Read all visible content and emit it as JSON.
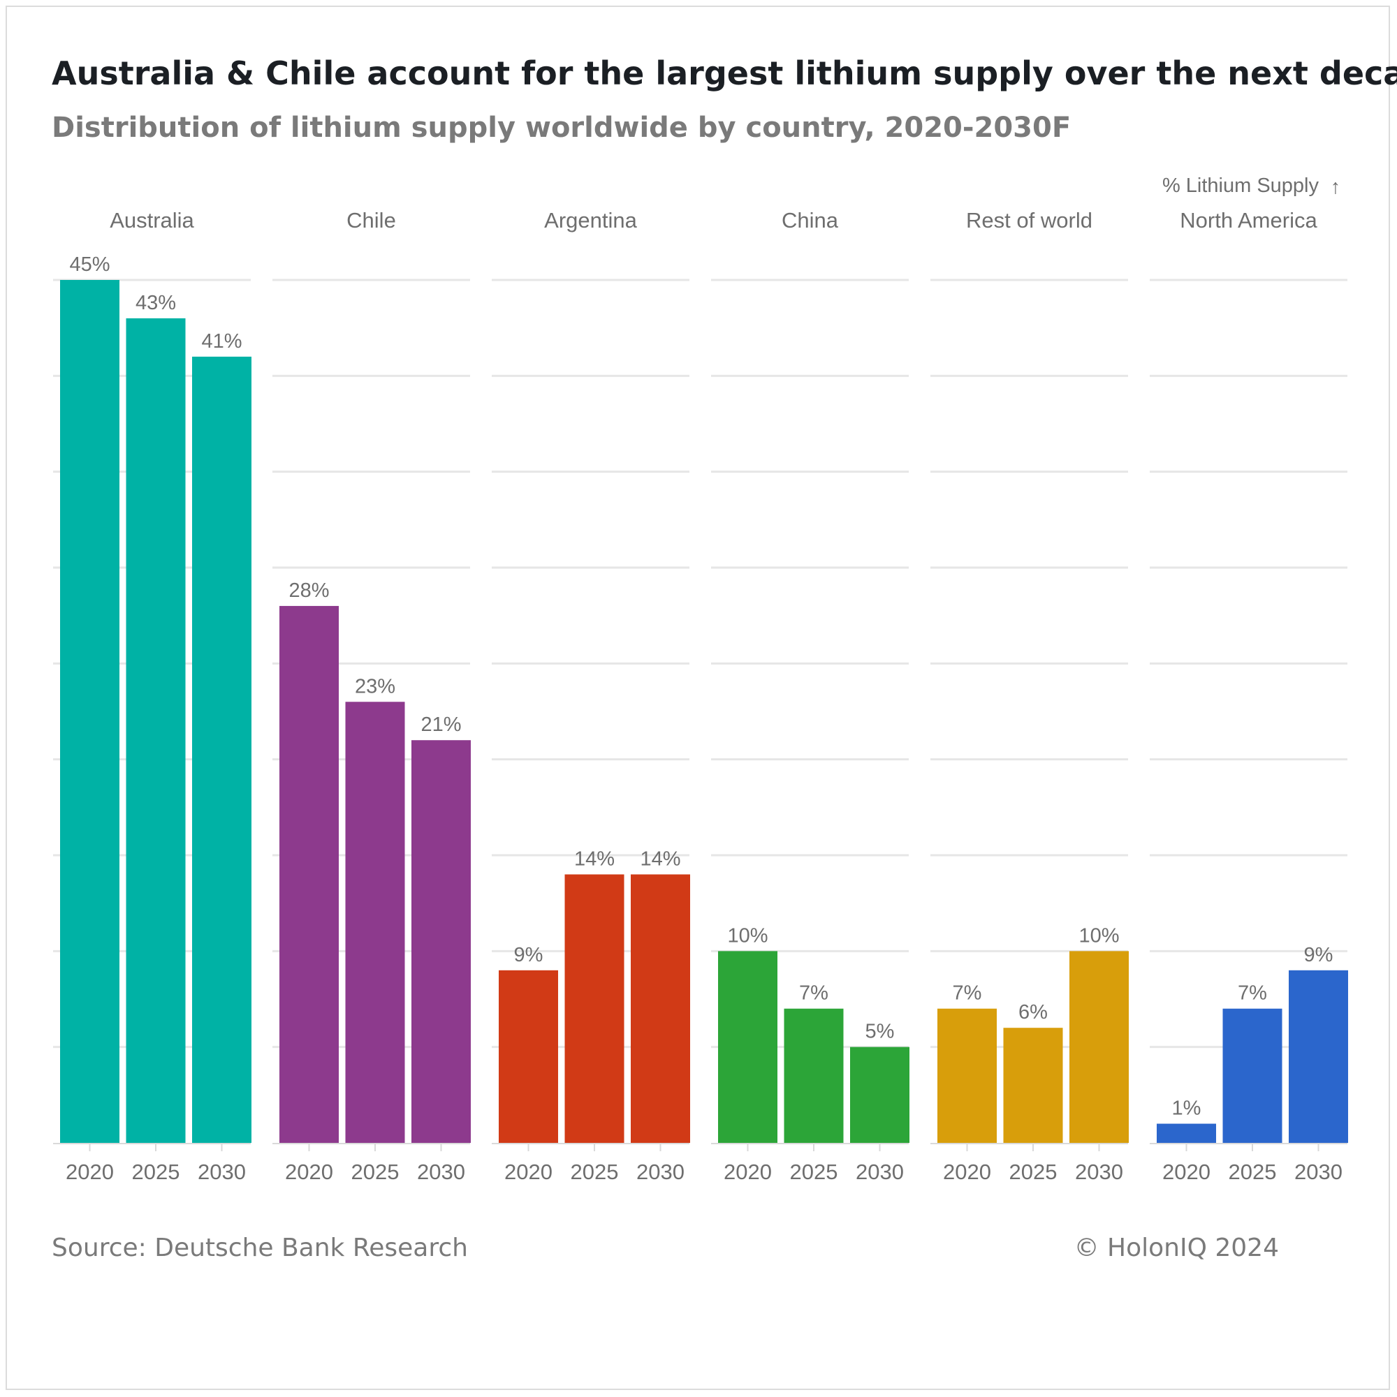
{
  "title": "Australia & Chile account for the largest lithium supply over the next decade",
  "subtitle": "Distribution of lithium supply worldwide by country, 2020-2030F",
  "source": "Source: Deutsche Bank Research",
  "copyright": "© HolonIQ 2024",
  "chart_data": {
    "type": "bar",
    "layout": "small-multiples",
    "title": "Australia & Chile account for the largest lithium supply over the next decade",
    "subtitle": "Distribution of lithium supply worldwide by country, 2020-2030F",
    "ylabel": "% Lithium Supply",
    "ylabel_arrow": "↑",
    "xlabel": "",
    "ylim": [
      0,
      45
    ],
    "grid": true,
    "categories": [
      "2020",
      "2025",
      "2030"
    ],
    "series": [
      {
        "name": "Australia",
        "color": "#00b2a5",
        "values": [
          45,
          43,
          41
        ],
        "labels": [
          "45%",
          "43%",
          "41%"
        ]
      },
      {
        "name": "Chile",
        "color": "#8d3a8d",
        "values": [
          28,
          23,
          21
        ],
        "labels": [
          "28%",
          "23%",
          "21%"
        ]
      },
      {
        "name": "Argentina",
        "color": "#d13a16",
        "values": [
          9,
          14,
          14
        ],
        "labels": [
          "9%",
          "14%",
          "14%"
        ]
      },
      {
        "name": "China",
        "color": "#2ca538",
        "values": [
          10,
          7,
          5
        ],
        "labels": [
          "10%",
          "7%",
          "5%"
        ]
      },
      {
        "name": "Rest of world",
        "color": "#d89e0b",
        "values": [
          7,
          6,
          10
        ],
        "labels": [
          "7%",
          "6%",
          "10%"
        ]
      },
      {
        "name": "North America",
        "color": "#2b66cc",
        "values": [
          1,
          7,
          9
        ],
        "labels": [
          "1%",
          "7%",
          "9%"
        ]
      }
    ]
  }
}
